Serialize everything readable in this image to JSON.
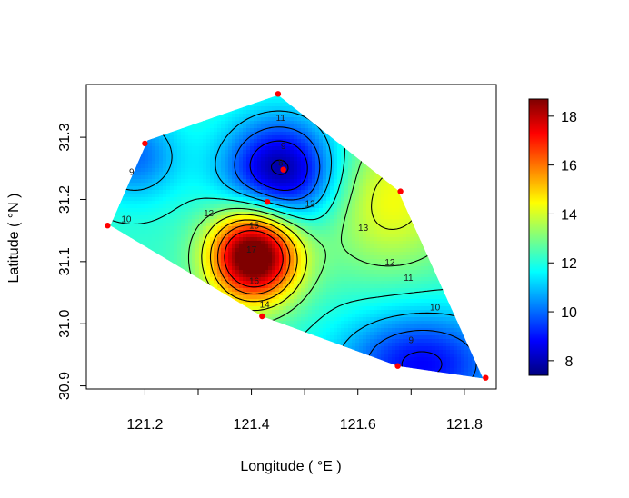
{
  "chart_data": {
    "type": "heatmap",
    "subtype": "interpolated contour map with sample points",
    "title": "",
    "xlabel": "Longitude ( °E )",
    "ylabel": "Latitude ( °N )",
    "xlim": [
      121.09,
      121.86
    ],
    "ylim": [
      30.895,
      31.385
    ],
    "x_ticks": [
      121.2,
      121.4,
      121.6,
      121.8
    ],
    "x_tick_labels": [
      "121.2",
      "121.4",
      "121.6",
      "121.8"
    ],
    "x_minor_ticks": [
      121.3,
      121.5,
      121.7
    ],
    "y_ticks": [
      30.9,
      31.0,
      31.1,
      31.2,
      31.3
    ],
    "y_tick_labels": [
      "30.9",
      "31.0",
      "31.1",
      "31.2",
      "31.3"
    ],
    "colorbar": {
      "range": [
        7.4,
        18.7
      ],
      "ticks": [
        8,
        10,
        12,
        14,
        16,
        18
      ],
      "tick_labels": [
        "8",
        "10",
        "12",
        "14",
        "16",
        "18"
      ],
      "colormap": "jet",
      "stops": [
        "#00007f",
        "#0000ff",
        "#007fff",
        "#00ffff",
        "#7fff7f",
        "#ffff00",
        "#ff7f00",
        "#ff0000",
        "#7f0000"
      ]
    },
    "region_polygon": [
      [
        121.135,
        31.158
      ],
      [
        121.205,
        31.295
      ],
      [
        121.45,
        31.368
      ],
      [
        121.675,
        31.215
      ],
      [
        121.835,
        30.912
      ],
      [
        121.675,
        30.932
      ],
      [
        121.42,
        31.012
      ]
    ],
    "sample_points": [
      {
        "x": 121.45,
        "y": 31.37
      },
      {
        "x": 121.2,
        "y": 31.29
      },
      {
        "x": 121.46,
        "y": 31.248
      },
      {
        "x": 121.43,
        "y": 31.196
      },
      {
        "x": 121.68,
        "y": 31.213
      },
      {
        "x": 121.13,
        "y": 31.158
      },
      {
        "x": 121.42,
        "y": 31.012
      },
      {
        "x": 121.675,
        "y": 30.932
      },
      {
        "x": 121.84,
        "y": 30.913
      }
    ],
    "point_color": "#ff0000",
    "field_features": [
      {
        "x": 121.405,
        "y": 31.11,
        "amp": 7.8,
        "sx": 0.058,
        "sy": 0.052
      },
      {
        "x": 121.455,
        "y": 31.245,
        "amp": -4.6,
        "sx": 0.075,
        "sy": 0.06
      },
      {
        "x": 121.18,
        "y": 31.27,
        "amp": -2.2,
        "sx": 0.06,
        "sy": 0.05
      },
      {
        "x": 121.72,
        "y": 30.935,
        "amp": -3.4,
        "sx": 0.11,
        "sy": 0.06
      },
      {
        "x": 121.66,
        "y": 31.2,
        "amp": 2.2,
        "sx": 0.09,
        "sy": 0.08
      }
    ],
    "field_base": 12.2,
    "contour_levels": [
      8,
      9,
      10,
      11,
      12,
      13,
      14,
      15,
      16,
      17
    ],
    "contour_labels": [
      {
        "text": "11",
        "x": 121.455,
        "y": 31.33
      },
      {
        "text": "9",
        "x": 121.46,
        "y": 31.285
      },
      {
        "text": "8",
        "x": 121.455,
        "y": 31.258
      },
      {
        "text": "12",
        "x": 121.51,
        "y": 31.192
      },
      {
        "text": "13",
        "x": 121.32,
        "y": 31.177
      },
      {
        "text": "13",
        "x": 121.61,
        "y": 31.153
      },
      {
        "text": "10",
        "x": 121.165,
        "y": 31.167
      },
      {
        "text": "9",
        "x": 121.175,
        "y": 31.243
      },
      {
        "text": "15",
        "x": 121.405,
        "y": 31.157
      },
      {
        "text": "17",
        "x": 121.4,
        "y": 31.118
      },
      {
        "text": "16",
        "x": 121.405,
        "y": 31.068
      },
      {
        "text": "14",
        "x": 121.425,
        "y": 31.03
      },
      {
        "text": "12",
        "x": 121.66,
        "y": 31.098
      },
      {
        "text": "11",
        "x": 121.695,
        "y": 31.073
      },
      {
        "text": "10",
        "x": 121.745,
        "y": 31.025
      },
      {
        "text": "9",
        "x": 121.7,
        "y": 30.973
      }
    ]
  }
}
